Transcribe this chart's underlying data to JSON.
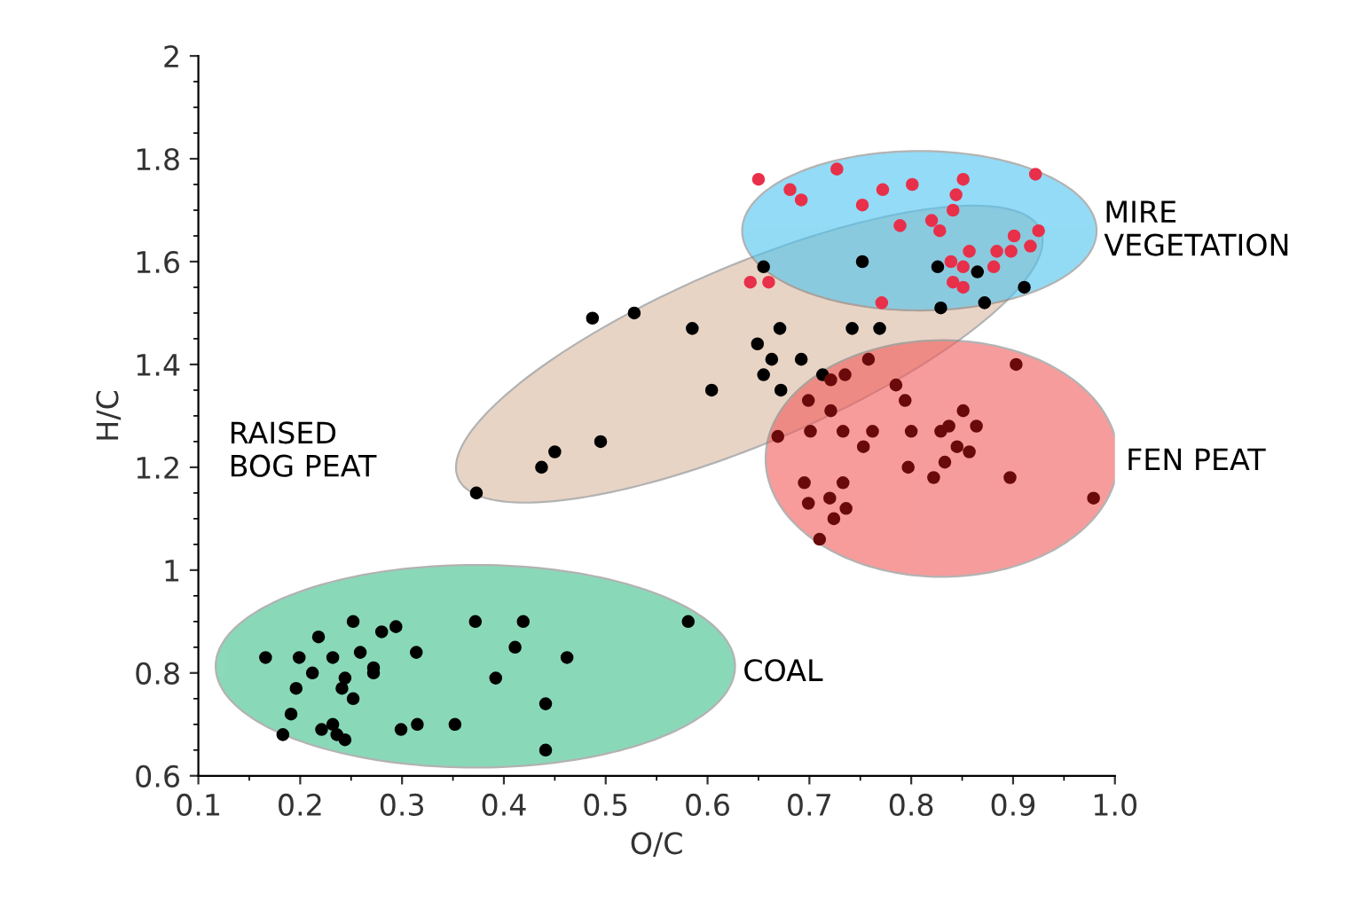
{
  "chart_data": {
    "type": "scatter",
    "xlabel": "O/C",
    "ylabel": "H/C",
    "xlim": [
      0.1,
      1.0
    ],
    "ylim": [
      0.6,
      2.0
    ],
    "xticks": [
      0.1,
      0.2,
      0.3,
      0.4,
      0.5,
      0.6,
      0.7,
      0.8,
      0.9,
      {
        "value": 1.0,
        "label": "1.0"
      }
    ],
    "yticks": [
      0.6,
      0.8,
      1,
      1.2,
      1.4,
      1.6,
      1.8,
      2
    ],
    "grid": false,
    "legend": false,
    "marker": "circle",
    "annotations": [
      "MIRE\nVEGETATION",
      "RAISED\nBOG PEAT",
      "FEN PEAT",
      "COAL"
    ],
    "series": [
      {
        "color": "#000000",
        "x": [
          0.166,
          0.199,
          0.218,
          0.212,
          0.196,
          0.191,
          0.183,
          0.232,
          0.252,
          0.244,
          0.241,
          0.252,
          0.259,
          0.272,
          0.272,
          0.28,
          0.294,
          0.232,
          0.221,
          0.236,
          0.244,
          0.314,
          0.299,
          0.315,
          0.352,
          0.372,
          0.392,
          0.411,
          0.419,
          0.462,
          0.441,
          0.441,
          0.581,
          0.373,
          0.437,
          0.45,
          0.495,
          0.487,
          0.528,
          0.585,
          0.604,
          0.649,
          0.671,
          0.663,
          0.655,
          0.672,
          0.692,
          0.713,
          0.742,
          0.769,
          0.655,
          0.752,
          0.826,
          0.865,
          0.911,
          0.872,
          0.829
        ],
        "values": [
          0.83,
          0.83,
          0.87,
          0.8,
          0.77,
          0.72,
          0.68,
          0.83,
          0.9,
          0.79,
          0.77,
          0.75,
          0.84,
          0.81,
          0.8,
          0.88,
          0.89,
          0.7,
          0.69,
          0.68,
          0.67,
          0.84,
          0.69,
          0.7,
          0.7,
          0.9,
          0.79,
          0.85,
          0.9,
          0.83,
          0.74,
          0.65,
          0.9,
          1.15,
          1.2,
          1.23,
          1.25,
          1.49,
          1.5,
          1.47,
          1.35,
          1.44,
          1.47,
          1.41,
          1.38,
          1.35,
          1.41,
          1.38,
          1.47,
          1.47,
          1.59,
          1.6,
          1.59,
          1.58,
          1.55,
          1.52,
          1.51
        ]
      },
      {
        "color": "#e8304a",
        "x": [
          0.65,
          0.727,
          0.681,
          0.692,
          0.772,
          0.801,
          0.752,
          0.851,
          0.844,
          0.841,
          0.922,
          0.82,
          0.828,
          0.789,
          0.901,
          0.925,
          0.917,
          0.857,
          0.884,
          0.898,
          0.839,
          0.851,
          0.881,
          0.841,
          0.851,
          0.642,
          0.66,
          0.771
        ],
        "values": [
          1.76,
          1.78,
          1.74,
          1.72,
          1.74,
          1.75,
          1.71,
          1.76,
          1.73,
          1.7,
          1.77,
          1.68,
          1.66,
          1.67,
          1.65,
          1.66,
          1.63,
          1.62,
          1.62,
          1.62,
          1.6,
          1.59,
          1.59,
          1.56,
          1.55,
          1.56,
          1.56,
          1.52
        ]
      },
      {
        "color": "#6a0a0a",
        "x": [
          0.758,
          0.735,
          0.721,
          0.699,
          0.721,
          0.785,
          0.794,
          0.903,
          0.669,
          0.701,
          0.733,
          0.762,
          0.753,
          0.8,
          0.829,
          0.837,
          0.851,
          0.864,
          0.845,
          0.857,
          0.833,
          0.797,
          0.822,
          0.897,
          0.979,
          0.695,
          0.733,
          0.72,
          0.699,
          0.736,
          0.724,
          0.71
        ],
        "values": [
          1.41,
          1.38,
          1.37,
          1.33,
          1.31,
          1.36,
          1.33,
          1.4,
          1.26,
          1.27,
          1.27,
          1.27,
          1.24,
          1.27,
          1.27,
          1.28,
          1.31,
          1.28,
          1.24,
          1.23,
          1.21,
          1.2,
          1.18,
          1.18,
          1.14,
          1.17,
          1.17,
          1.14,
          1.13,
          1.12,
          1.1,
          1.06
        ]
      }
    ]
  }
}
